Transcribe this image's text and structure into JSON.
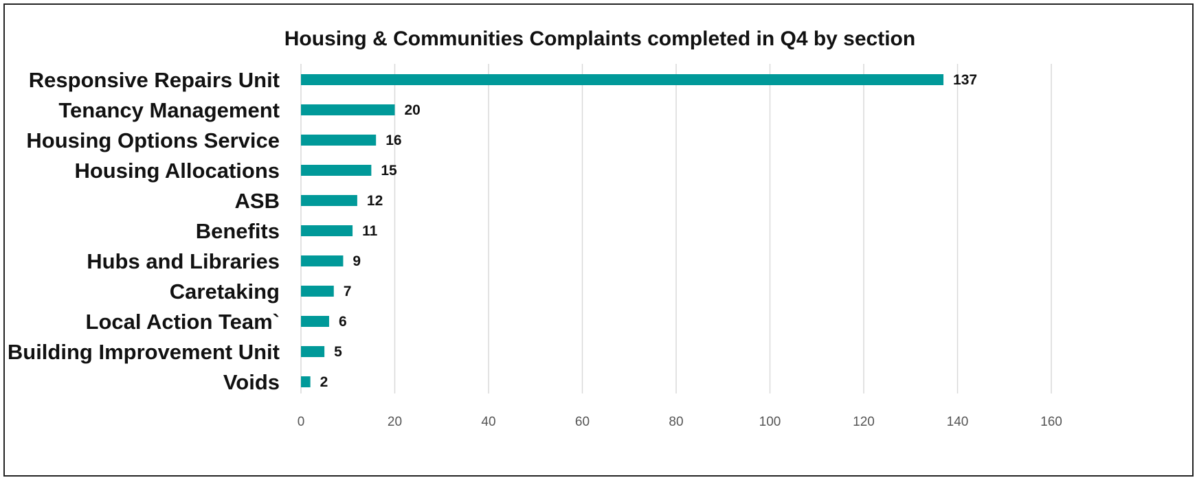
{
  "chart_data": {
    "type": "bar",
    "orientation": "horizontal",
    "title": "Housing & Communities Complaints completed in Q4 by section",
    "xlabel": "",
    "ylabel": "",
    "categories": [
      "Responsive Repairs Unit",
      "Tenancy Management",
      "Housing Options Service",
      "Housing Allocations",
      "ASB",
      "Benefits",
      "Hubs and Libraries",
      "Caretaking",
      "Local Action Team`",
      "Building Improvement Unit",
      "Voids"
    ],
    "values": [
      137,
      20,
      16,
      15,
      12,
      11,
      9,
      7,
      6,
      5,
      2
    ],
    "xlim": [
      0,
      160
    ],
    "ticks": [
      0,
      20,
      40,
      60,
      80,
      100,
      120,
      140,
      160
    ],
    "grid": true,
    "data_labels": true,
    "colors": {
      "bar": "#009999",
      "grid": "#d9d9d9",
      "frame": "#222222"
    }
  }
}
